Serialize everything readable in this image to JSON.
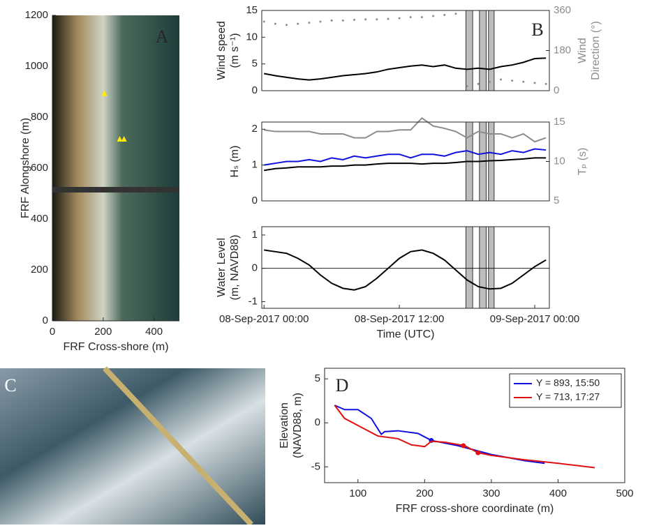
{
  "chart_data": [
    {
      "type": "image",
      "panel_label": "A",
      "xlabel": "FRF Cross-shore (m)",
      "ylabel": "FRF Alongshore (m)",
      "xlim": [
        0,
        500
      ],
      "ylim": [
        0,
        1200
      ],
      "xticks": [
        0,
        200,
        400
      ],
      "yticks": [
        0,
        200,
        400,
        600,
        800,
        1000,
        1200
      ],
      "markers": {
        "color": "#ffee00",
        "x": [
          205,
          265,
          282
        ],
        "y": [
          895,
          715,
          715
        ]
      }
    },
    {
      "type": "line",
      "panel_label": "B",
      "ylabel": [
        "Wind speed",
        "(m s⁻¹)"
      ],
      "y2label": [
        "Wind",
        "Direction (°)"
      ],
      "xlim": [
        -0.2,
        25.3
      ],
      "ylim": [
        0,
        15
      ],
      "yticks": [
        0,
        5,
        10,
        15
      ],
      "y2lim": [
        0,
        360
      ],
      "y2ticks": [
        0,
        180,
        360
      ],
      "spans": [
        [
          17.9,
          18.5
        ],
        [
          19.1,
          19.7
        ],
        [
          19.9,
          20.4
        ]
      ],
      "series": [
        {
          "color": "#000000",
          "style": "line",
          "x": [
            0,
            1,
            2,
            3,
            4,
            5,
            6,
            7,
            8,
            9,
            10,
            11,
            12,
            13,
            14,
            15,
            16,
            17,
            18,
            19,
            20,
            21,
            22,
            23,
            24,
            25
          ],
          "values": [
            3.2,
            2.8,
            2.5,
            2.2,
            2.0,
            2.2,
            2.5,
            2.8,
            3,
            3.2,
            3.5,
            4,
            4.3,
            4.6,
            4.8,
            4.5,
            4.8,
            4.2,
            4,
            4.2,
            4,
            4.5,
            4.8,
            5.3,
            6,
            6.1
          ]
        },
        {
          "color": "#8c8c8c",
          "style": "markers",
          "axis": "y2",
          "x": [
            0,
            1,
            2,
            3,
            4,
            5,
            6,
            7,
            8,
            9,
            10,
            11,
            12,
            13,
            14,
            15,
            16,
            17,
            18,
            19,
            20,
            21,
            22,
            23,
            24,
            25
          ],
          "values": [
            310,
            300,
            295,
            300,
            305,
            310,
            315,
            315,
            318,
            320,
            320,
            322,
            325,
            330,
            330,
            335,
            340,
            345,
            20,
            30,
            40,
            50,
            45,
            40,
            35,
            30
          ]
        }
      ]
    },
    {
      "type": "line",
      "ylabel": [
        "Hₛ (m)"
      ],
      "y2label": [
        "Tₚ (s)"
      ],
      "xlim": [
        -0.2,
        25.3
      ],
      "ylim": [
        0,
        2.2
      ],
      "yticks": [
        0,
        1,
        2
      ],
      "y2lim": [
        5,
        15
      ],
      "y2ticks": [
        5,
        10,
        15
      ],
      "spans": [
        [
          17.9,
          18.5
        ],
        [
          19.1,
          19.7
        ],
        [
          19.9,
          20.4
        ]
      ],
      "series": [
        {
          "color": "#8c8c8c",
          "style": "line",
          "axis": "y2",
          "x": [
            0,
            1,
            2,
            3,
            4,
            5,
            6,
            7,
            8,
            9,
            10,
            11,
            12,
            13,
            14,
            15,
            16,
            17,
            18,
            19,
            20,
            21,
            22,
            23,
            24,
            25
          ],
          "values": [
            14,
            13.8,
            13.8,
            13.8,
            13.8,
            13.5,
            13.5,
            13.5,
            13,
            13,
            13.8,
            13.8,
            14,
            14,
            15.5,
            14.5,
            14.2,
            13.8,
            13,
            13.8,
            13.5,
            13.5,
            13,
            13.5,
            12.5,
            13
          ]
        },
        {
          "color": "#1010e0",
          "style": "line",
          "x": [
            0,
            1,
            2,
            3,
            4,
            5,
            6,
            7,
            8,
            9,
            10,
            11,
            12,
            13,
            14,
            15,
            16,
            17,
            18,
            19,
            20,
            21,
            22,
            23,
            24,
            25
          ],
          "values": [
            1.0,
            1.05,
            1.1,
            1.1,
            1.15,
            1.1,
            1.2,
            1.15,
            1.25,
            1.2,
            1.25,
            1.3,
            1.3,
            1.2,
            1.3,
            1.3,
            1.25,
            1.35,
            1.4,
            1.3,
            1.35,
            1.3,
            1.4,
            1.35,
            1.45,
            1.42
          ]
        },
        {
          "color": "#000000",
          "style": "line",
          "x": [
            0,
            1,
            2,
            3,
            4,
            5,
            6,
            7,
            8,
            9,
            10,
            11,
            12,
            13,
            14,
            15,
            16,
            17,
            18,
            19,
            20,
            21,
            22,
            23,
            24,
            25
          ],
          "values": [
            0.85,
            0.9,
            0.92,
            0.95,
            0.95,
            0.95,
            0.97,
            0.97,
            1.0,
            1.0,
            1.03,
            1.05,
            1.05,
            1.05,
            1.03,
            1.05,
            1.05,
            1.07,
            1.1,
            1.1,
            1.12,
            1.13,
            1.15,
            1.17,
            1.2,
            1.2
          ]
        }
      ]
    },
    {
      "type": "line",
      "ylabel": [
        "Water Level",
        "(m, NAVD88)"
      ],
      "xlabel": "Time (UTC)",
      "xlim": [
        -0.2,
        25.3
      ],
      "ylim": [
        -1.2,
        1.25
      ],
      "yticks": [
        -1,
        0,
        1
      ],
      "xticks": [
        {
          "value": 0,
          "label": "08-Sep-2017 00:00"
        },
        {
          "value": 12,
          "label": "08-Sep-2017 12:00"
        },
        {
          "value": 24,
          "label": "09-Sep-2017 00:00"
        }
      ],
      "spans": [
        [
          17.9,
          18.5
        ],
        [
          19.1,
          19.7
        ],
        [
          19.9,
          20.4
        ]
      ],
      "series": [
        {
          "color": "#000000",
          "style": "line",
          "x": [
            0,
            1,
            2,
            3,
            4,
            5,
            6,
            7,
            8,
            9,
            10,
            11,
            12,
            13,
            14,
            15,
            16,
            17,
            18,
            19,
            20,
            21,
            22,
            23,
            24,
            25
          ],
          "values": [
            0.55,
            0.5,
            0.45,
            0.3,
            0.1,
            -0.2,
            -0.45,
            -0.6,
            -0.65,
            -0.55,
            -0.3,
            0,
            0.3,
            0.5,
            0.55,
            0.45,
            0.25,
            -0.05,
            -0.35,
            -0.55,
            -0.62,
            -0.6,
            -0.45,
            -0.2,
            0.05,
            0.25
          ]
        }
      ]
    },
    {
      "type": "photo",
      "panel_label": "C"
    },
    {
      "type": "line",
      "panel_label": "D",
      "ylabel": [
        "Elevation",
        "(NAVD88, m)"
      ],
      "xlabel": "FRF cross-shore coordinate (m)",
      "xlim": [
        50,
        500
      ],
      "ylim": [
        -6.8,
        6.2
      ],
      "xticks": [
        100,
        200,
        300,
        400,
        500
      ],
      "yticks": [
        -5,
        0,
        5
      ],
      "series": [
        {
          "name": "Y = 893, 15:50",
          "color": "#1010e0",
          "style": "line",
          "x": [
            65,
            80,
            100,
            120,
            135,
            140,
            160,
            190,
            210,
            250,
            300,
            350,
            380
          ],
          "values": [
            2,
            1.5,
            1.5,
            0.5,
            -1.3,
            -1,
            -0.9,
            -1.2,
            -2,
            -2.6,
            -3.6,
            -4.3,
            -4.6
          ],
          "points": {
            "x": [
              210
            ],
            "y": [
              -2
            ]
          }
        },
        {
          "name": "Y = 713, 17:27",
          "color": "#e01010",
          "style": "line",
          "x": [
            65,
            80,
            100,
            130,
            160,
            180,
            200,
            210,
            230,
            260,
            280,
            300,
            350,
            400,
            455
          ],
          "values": [
            2,
            0.5,
            -0.3,
            -1.5,
            -1.8,
            -2.5,
            -2.7,
            -2.1,
            -2.2,
            -2.6,
            -3.4,
            -3.7,
            -4.2,
            -4.6,
            -5.1
          ],
          "points": {
            "x": [
              258,
              280
            ],
            "y": [
              -2.6,
              -3.4
            ]
          }
        }
      ]
    }
  ]
}
